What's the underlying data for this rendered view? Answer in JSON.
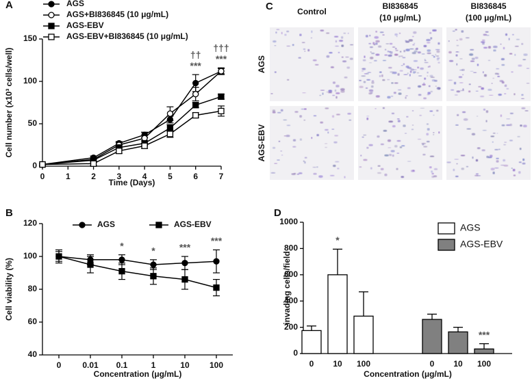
{
  "panel_c": {
    "label": "C",
    "columns": [
      [
        "Control"
      ],
      [
        "BI836845",
        "(10 μg/mL)"
      ],
      [
        "BI836845",
        "(100 μg/mL)"
      ]
    ],
    "rows": [
      "AGS",
      "AGS-EBV"
    ]
  },
  "chart_data": [
    {
      "type": "line",
      "panel": "A",
      "x_label": "Time (Days)",
      "y_label": "Cell number (x10³ cells/well)",
      "x": [
        0,
        2,
        3,
        4,
        5,
        6,
        7
      ],
      "xlim": [
        0,
        7
      ],
      "xticks": [
        0,
        1,
        2,
        3,
        4,
        5,
        6,
        7
      ],
      "ylim": [
        0,
        150
      ],
      "yticks": [
        0,
        50,
        100,
        150
      ],
      "legend": "top-left",
      "series": [
        {
          "name": "AGS",
          "color": "#000000",
          "marker": "circle",
          "filled": true,
          "values": [
            2,
            10,
            27,
            37,
            55,
            98,
            112
          ],
          "errors": [
            1,
            2,
            2,
            3,
            4,
            10,
            3
          ]
        },
        {
          "name": "AGS+BI836845 (10 μg/mL)",
          "color": "#000000",
          "marker": "circle",
          "filled": false,
          "values": [
            2,
            8,
            25,
            33,
            62,
            85,
            112
          ],
          "errors": [
            1,
            2,
            3,
            7,
            8,
            8,
            4
          ]
        },
        {
          "name": "AGS-EBV",
          "color": "#000000",
          "marker": "square",
          "filled": true,
          "values": [
            2,
            7,
            22,
            27,
            45,
            72,
            82
          ],
          "errors": [
            1,
            2,
            2,
            3,
            4,
            3,
            3
          ]
        },
        {
          "name": "AGS-EBV+BI836845 (10 μg/mL)",
          "color": "#000000",
          "marker": "square",
          "filled": false,
          "values": [
            2,
            3,
            18,
            24,
            38,
            60,
            65
          ],
          "errors": [
            1,
            2,
            3,
            3,
            4,
            3,
            6
          ]
        }
      ],
      "significance": [
        null,
        null,
        null,
        null,
        null,
        "***",
        "***"
      ],
      "significance_upper": [
        null,
        null,
        null,
        null,
        null,
        "††",
        "†††"
      ]
    },
    {
      "type": "line",
      "panel": "B",
      "x_label": "Concentration (μg/mL)",
      "y_label": "Cell viability (%)",
      "categories": [
        "0",
        "0.01",
        "0.1",
        "1",
        "10",
        "100"
      ],
      "ylim": [
        40,
        120
      ],
      "yticks": [
        40,
        60,
        80,
        100,
        120
      ],
      "legend": "top",
      "series": [
        {
          "name": "AGS",
          "color": "#000000",
          "marker": "circle",
          "filled": true,
          "values": [
            100,
            98,
            98,
            95,
            96,
            97
          ],
          "errors": [
            4,
            3,
            3,
            3,
            4,
            7
          ]
        },
        {
          "name": "AGS-EBV",
          "color": "#000000",
          "marker": "square",
          "filled": true,
          "values": [
            100,
            95,
            91,
            88,
            86,
            81
          ],
          "errors": [
            3,
            5,
            5,
            5,
            6,
            5
          ]
        }
      ],
      "significance": [
        null,
        null,
        "*",
        "*",
        "***",
        "***"
      ]
    },
    {
      "type": "bar",
      "panel": "D",
      "x_label": "Concentration (μg/mL)",
      "y_label": "invading cells/field",
      "categories": [
        "0",
        "10",
        "100",
        "0",
        "10",
        "100"
      ],
      "ylim": [
        0,
        1000
      ],
      "yticks": [
        0,
        200,
        400,
        600,
        800,
        1000
      ],
      "legend": "top-right",
      "series": [
        {
          "name": "AGS",
          "color": "#ffffff",
          "values": [
            175,
            600,
            285,
            null,
            null,
            null
          ],
          "errors": [
            35,
            195,
            185,
            null,
            null,
            null
          ]
        },
        {
          "name": "AGS-EBV",
          "color": "#808080",
          "values": [
            null,
            null,
            null,
            260,
            165,
            35
          ],
          "errors": [
            null,
            null,
            null,
            40,
            35,
            40
          ]
        }
      ],
      "significance": [
        null,
        "*",
        null,
        null,
        null,
        "***"
      ]
    }
  ]
}
